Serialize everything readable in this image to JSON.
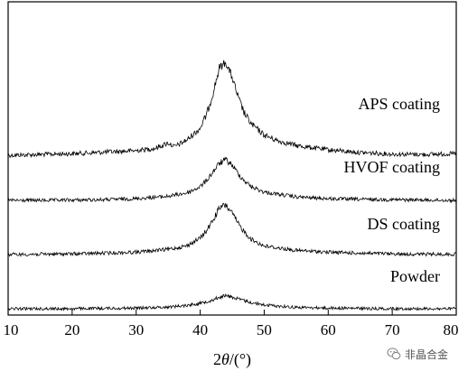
{
  "chart_data": {
    "type": "line",
    "title": "",
    "xlabel_prefix": "2",
    "xlabel_theta": "θ",
    "xlabel_suffix": "/(°)",
    "ylabel": "",
    "xlim": [
      10,
      80
    ],
    "x_ticks": [
      10,
      20,
      30,
      40,
      50,
      60,
      70,
      80
    ],
    "y_axis": "none (stacked, offset traces, arbitrary intensity)",
    "grid": false,
    "legend": "none (series labelled directly above each trace)",
    "series": [
      {
        "name": "APS coating",
        "color": "#000000",
        "x": [
          10,
          15,
          20,
          25,
          30,
          33,
          35,
          36,
          38,
          40,
          41,
          42,
          43,
          44,
          45,
          46,
          47,
          48,
          50,
          52,
          55,
          60,
          65,
          70,
          75,
          80
        ],
        "y": [
          0.3,
          0.32,
          0.34,
          0.38,
          0.42,
          0.48,
          0.62,
          0.52,
          0.7,
          1.0,
          1.35,
          1.9,
          2.55,
          2.7,
          2.3,
          1.75,
          1.35,
          1.1,
          0.82,
          0.68,
          0.55,
          0.44,
          0.37,
          0.33,
          0.32,
          0.34
        ]
      },
      {
        "name": "HVOF coating",
        "color": "#000000",
        "x": [
          10,
          15,
          20,
          25,
          30,
          35,
          38,
          40,
          41,
          42,
          43,
          44,
          45,
          46,
          47,
          48,
          50,
          55,
          60,
          65,
          70,
          75,
          80
        ],
        "y": [
          0.22,
          0.22,
          0.23,
          0.24,
          0.27,
          0.34,
          0.44,
          0.62,
          0.8,
          1.05,
          1.3,
          1.4,
          1.25,
          0.98,
          0.78,
          0.62,
          0.46,
          0.32,
          0.27,
          0.25,
          0.24,
          0.23,
          0.22
        ]
      },
      {
        "name": "DS coating",
        "color": "#000000",
        "x": [
          10,
          15,
          20,
          25,
          30,
          35,
          38,
          40,
          41,
          42,
          43,
          44,
          45,
          46,
          47,
          48,
          50,
          55,
          60,
          65,
          70,
          75,
          80
        ],
        "y": [
          0.2,
          0.21,
          0.22,
          0.24,
          0.27,
          0.35,
          0.46,
          0.68,
          0.9,
          1.2,
          1.55,
          1.65,
          1.4,
          1.08,
          0.84,
          0.64,
          0.45,
          0.32,
          0.27,
          0.24,
          0.22,
          0.21,
          0.21
        ]
      },
      {
        "name": "Powder",
        "color": "#000000",
        "x": [
          10,
          15,
          20,
          25,
          30,
          35,
          38,
          40,
          42,
          43,
          44,
          45,
          46,
          48,
          50,
          55,
          60,
          65,
          70,
          75,
          80
        ],
        "y": [
          0.16,
          0.16,
          0.16,
          0.17,
          0.18,
          0.21,
          0.26,
          0.32,
          0.42,
          0.5,
          0.54,
          0.5,
          0.44,
          0.34,
          0.27,
          0.2,
          0.18,
          0.17,
          0.16,
          0.16,
          0.16
        ]
      }
    ]
  },
  "watermark": {
    "text": "非晶合金",
    "icon": "wechat-icon"
  }
}
